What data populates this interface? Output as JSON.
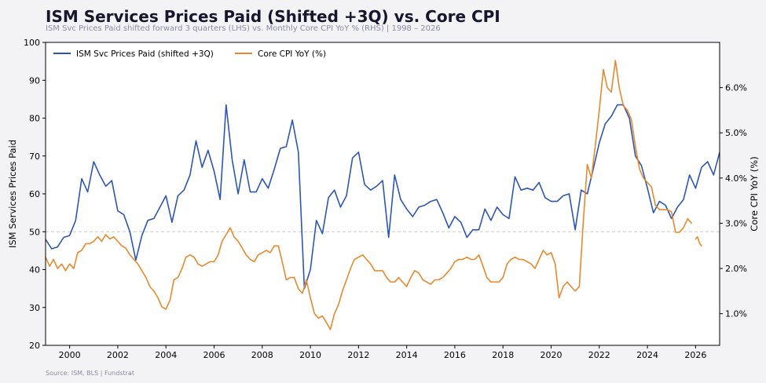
{
  "header": {
    "title": "ISM Services Prices Paid (Shifted +3Q) vs. Core CPI",
    "subtitle": "ISM Svc Prices Paid shifted forward 3 quarters (LHS) vs. Monthly Core CPI YoY % (RHS)  |  1998 – 2026"
  },
  "footer": {
    "source": "Source: ISM, BLS | Fundstrat"
  },
  "colors": {
    "ism": "#2d56b3",
    "cpi": "#e8892e",
    "refline": "#c8c8c8"
  },
  "chart_data": {
    "type": "line",
    "xlim": [
      1999.0,
      2027.0
    ],
    "x_ticks": [
      2000,
      2002,
      2004,
      2006,
      2008,
      2010,
      2012,
      2014,
      2016,
      2018,
      2020,
      2022,
      2024,
      2026
    ],
    "x_tick_labels": [
      "2000",
      "2002",
      "2004",
      "2006",
      "2008",
      "2010",
      "2012",
      "2014",
      "2016",
      "2018",
      "2020",
      "2022",
      "2024",
      "2026"
    ],
    "y_left": {
      "label": "ISM Services Prices Paid",
      "ylim": [
        20,
        100
      ],
      "ticks": [
        20,
        30,
        40,
        50,
        60,
        70,
        80,
        90,
        100
      ],
      "tick_labels": [
        "20",
        "30",
        "40",
        "50",
        "60",
        "70",
        "80",
        "90",
        "100"
      ]
    },
    "y_right": {
      "label": "Core CPI YoY (%)",
      "ylim": [
        0.3,
        7.0
      ],
      "ticks": [
        1.0,
        2.0,
        3.0,
        4.0,
        5.0,
        6.0
      ],
      "tick_labels": [
        "1.0%",
        "2.0%",
        "3.0%",
        "4.0%",
        "5.0%",
        "6.0%"
      ]
    },
    "reference_line": {
      "axis": "left",
      "value": 50,
      "style": "dashed"
    },
    "legend": {
      "position": "top-left"
    },
    "grid": false,
    "series": [
      {
        "name": "ISM Svc Prices Paid (shifted +3Q)",
        "axis": "left",
        "color": "#2d56b3",
        "points": [
          [
            1999.0,
            48.0
          ],
          [
            1999.25,
            45.5
          ],
          [
            1999.5,
            46.0
          ],
          [
            1999.75,
            48.5
          ],
          [
            2000.0,
            49.0
          ],
          [
            2000.25,
            53.0
          ],
          [
            2000.5,
            64.0
          ],
          [
            2000.75,
            60.5
          ],
          [
            2001.0,
            68.5
          ],
          [
            2001.25,
            65.0
          ],
          [
            2001.5,
            62.0
          ],
          [
            2001.75,
            63.5
          ],
          [
            2002.0,
            55.5
          ],
          [
            2002.25,
            54.5
          ],
          [
            2002.5,
            50.0
          ],
          [
            2002.75,
            42.5
          ],
          [
            2003.0,
            49.0
          ],
          [
            2003.25,
            53.0
          ],
          [
            2003.5,
            53.5
          ],
          [
            2003.75,
            56.5
          ],
          [
            2004.0,
            59.5
          ],
          [
            2004.25,
            52.5
          ],
          [
            2004.5,
            59.5
          ],
          [
            2004.75,
            61.0
          ],
          [
            2005.0,
            65.0
          ],
          [
            2005.25,
            74.0
          ],
          [
            2005.5,
            67.0
          ],
          [
            2005.75,
            71.5
          ],
          [
            2006.0,
            66.0
          ],
          [
            2006.25,
            58.5
          ],
          [
            2006.5,
            83.5
          ],
          [
            2006.75,
            69.0
          ],
          [
            2007.0,
            60.0
          ],
          [
            2007.25,
            69.0
          ],
          [
            2007.5,
            60.5
          ],
          [
            2007.75,
            60.5
          ],
          [
            2008.0,
            64.0
          ],
          [
            2008.25,
            61.5
          ],
          [
            2008.5,
            66.5
          ],
          [
            2008.75,
            72.0
          ],
          [
            2009.0,
            72.5
          ],
          [
            2009.25,
            79.5
          ],
          [
            2009.5,
            71.0
          ],
          [
            2009.75,
            35.0
          ],
          [
            2010.0,
            40.0
          ],
          [
            2010.25,
            53.0
          ],
          [
            2010.5,
            49.5
          ],
          [
            2010.75,
            59.0
          ],
          [
            2011.0,
            61.0
          ],
          [
            2011.25,
            56.5
          ],
          [
            2011.5,
            59.5
          ],
          [
            2011.75,
            69.5
          ],
          [
            2012.0,
            71.0
          ],
          [
            2012.25,
            62.5
          ],
          [
            2012.5,
            61.0
          ],
          [
            2012.75,
            62.0
          ],
          [
            2013.0,
            63.5
          ],
          [
            2013.25,
            48.5
          ],
          [
            2013.5,
            65.0
          ],
          [
            2013.75,
            58.5
          ],
          [
            2014.0,
            56.0
          ],
          [
            2014.25,
            54.0
          ],
          [
            2014.5,
            56.5
          ],
          [
            2014.75,
            57.0
          ],
          [
            2015.0,
            58.0
          ],
          [
            2015.25,
            58.5
          ],
          [
            2015.5,
            55.0
          ],
          [
            2015.75,
            51.0
          ],
          [
            2016.0,
            54.0
          ],
          [
            2016.25,
            52.5
          ],
          [
            2016.5,
            48.5
          ],
          [
            2016.75,
            50.5
          ],
          [
            2017.0,
            50.5
          ],
          [
            2017.25,
            56.0
          ],
          [
            2017.5,
            53.0
          ],
          [
            2017.75,
            56.5
          ],
          [
            2018.0,
            54.5
          ],
          [
            2018.25,
            53.5
          ],
          [
            2018.5,
            64.5
          ],
          [
            2018.75,
            61.0
          ],
          [
            2019.0,
            61.5
          ],
          [
            2019.25,
            61.0
          ],
          [
            2019.5,
            63.0
          ],
          [
            2019.75,
            59.0
          ],
          [
            2020.0,
            58.0
          ],
          [
            2020.25,
            58.0
          ],
          [
            2020.5,
            59.5
          ],
          [
            2020.75,
            60.0
          ],
          [
            2021.0,
            50.5
          ],
          [
            2021.25,
            61.0
          ],
          [
            2021.5,
            60.0
          ],
          [
            2021.75,
            66.5
          ],
          [
            2022.0,
            73.5
          ],
          [
            2022.25,
            78.5
          ],
          [
            2022.5,
            80.5
          ],
          [
            2022.75,
            83.5
          ],
          [
            2023.0,
            83.5
          ],
          [
            2023.25,
            80.0
          ],
          [
            2023.5,
            70.0
          ],
          [
            2023.75,
            67.5
          ],
          [
            2024.0,
            61.5
          ],
          [
            2024.25,
            55.0
          ],
          [
            2024.5,
            58.0
          ],
          [
            2024.75,
            57.0
          ],
          [
            2025.0,
            53.5
          ],
          [
            2025.25,
            56.5
          ],
          [
            2025.5,
            58.5
          ],
          [
            2025.75,
            65.0
          ],
          [
            2026.0,
            61.5
          ],
          [
            2026.25,
            67.0
          ],
          [
            2026.5,
            68.5
          ],
          [
            2026.75,
            65.0
          ],
          [
            2027.0,
            71.0
          ]
        ]
      },
      {
        "name": "Core CPI YoY (%)",
        "axis": "right",
        "color": "#e8892e",
        "points": [
          [
            1999.0,
            2.25
          ],
          [
            1999.17,
            2.05
          ],
          [
            1999.33,
            2.2
          ],
          [
            1999.5,
            2.0
          ],
          [
            1999.67,
            2.1
          ],
          [
            1999.83,
            1.95
          ],
          [
            2000.0,
            2.1
          ],
          [
            2000.17,
            2.0
          ],
          [
            2000.33,
            2.35
          ],
          [
            2000.5,
            2.4
          ],
          [
            2000.67,
            2.55
          ],
          [
            2000.83,
            2.55
          ],
          [
            2001.0,
            2.6
          ],
          [
            2001.17,
            2.7
          ],
          [
            2001.33,
            2.6
          ],
          [
            2001.5,
            2.75
          ],
          [
            2001.67,
            2.65
          ],
          [
            2001.83,
            2.7
          ],
          [
            2002.0,
            2.6
          ],
          [
            2002.17,
            2.5
          ],
          [
            2002.33,
            2.45
          ],
          [
            2002.5,
            2.3
          ],
          [
            2002.67,
            2.2
          ],
          [
            2002.83,
            2.1
          ],
          [
            2003.0,
            1.95
          ],
          [
            2003.17,
            1.8
          ],
          [
            2003.33,
            1.6
          ],
          [
            2003.5,
            1.5
          ],
          [
            2003.67,
            1.35
          ],
          [
            2003.83,
            1.15
          ],
          [
            2004.0,
            1.1
          ],
          [
            2004.17,
            1.3
          ],
          [
            2004.33,
            1.75
          ],
          [
            2004.5,
            1.8
          ],
          [
            2004.67,
            2.0
          ],
          [
            2004.83,
            2.25
          ],
          [
            2005.0,
            2.3
          ],
          [
            2005.17,
            2.25
          ],
          [
            2005.33,
            2.1
          ],
          [
            2005.5,
            2.05
          ],
          [
            2005.67,
            2.1
          ],
          [
            2005.83,
            2.15
          ],
          [
            2006.0,
            2.15
          ],
          [
            2006.17,
            2.3
          ],
          [
            2006.33,
            2.6
          ],
          [
            2006.5,
            2.75
          ],
          [
            2006.67,
            2.9
          ],
          [
            2006.83,
            2.7
          ],
          [
            2007.0,
            2.6
          ],
          [
            2007.17,
            2.45
          ],
          [
            2007.33,
            2.3
          ],
          [
            2007.5,
            2.2
          ],
          [
            2007.67,
            2.15
          ],
          [
            2007.83,
            2.3
          ],
          [
            2008.0,
            2.35
          ],
          [
            2008.17,
            2.4
          ],
          [
            2008.33,
            2.35
          ],
          [
            2008.5,
            2.5
          ],
          [
            2008.67,
            2.5
          ],
          [
            2008.83,
            2.15
          ],
          [
            2009.0,
            1.75
          ],
          [
            2009.17,
            1.8
          ],
          [
            2009.33,
            1.8
          ],
          [
            2009.5,
            1.55
          ],
          [
            2009.67,
            1.45
          ],
          [
            2009.83,
            1.75
          ],
          [
            2010.0,
            1.35
          ],
          [
            2010.17,
            1.0
          ],
          [
            2010.33,
            0.9
          ],
          [
            2010.5,
            0.95
          ],
          [
            2010.67,
            0.8
          ],
          [
            2010.83,
            0.65
          ],
          [
            2011.0,
            1.0
          ],
          [
            2011.17,
            1.2
          ],
          [
            2011.33,
            1.5
          ],
          [
            2011.5,
            1.75
          ],
          [
            2011.67,
            2.0
          ],
          [
            2011.83,
            2.2
          ],
          [
            2012.0,
            2.25
          ],
          [
            2012.17,
            2.3
          ],
          [
            2012.33,
            2.2
          ],
          [
            2012.5,
            2.1
          ],
          [
            2012.67,
            1.95
          ],
          [
            2012.83,
            1.95
          ],
          [
            2013.0,
            1.95
          ],
          [
            2013.17,
            1.8
          ],
          [
            2013.33,
            1.7
          ],
          [
            2013.5,
            1.7
          ],
          [
            2013.67,
            1.8
          ],
          [
            2013.83,
            1.7
          ],
          [
            2014.0,
            1.6
          ],
          [
            2014.17,
            1.8
          ],
          [
            2014.33,
            1.95
          ],
          [
            2014.5,
            1.9
          ],
          [
            2014.67,
            1.75
          ],
          [
            2014.83,
            1.7
          ],
          [
            2015.0,
            1.65
          ],
          [
            2015.17,
            1.75
          ],
          [
            2015.33,
            1.75
          ],
          [
            2015.5,
            1.8
          ],
          [
            2015.67,
            1.9
          ],
          [
            2015.83,
            2.0
          ],
          [
            2016.0,
            2.15
          ],
          [
            2016.17,
            2.2
          ],
          [
            2016.33,
            2.2
          ],
          [
            2016.5,
            2.25
          ],
          [
            2016.67,
            2.2
          ],
          [
            2016.83,
            2.2
          ],
          [
            2017.0,
            2.3
          ],
          [
            2017.17,
            2.05
          ],
          [
            2017.33,
            1.8
          ],
          [
            2017.5,
            1.7
          ],
          [
            2017.67,
            1.7
          ],
          [
            2017.83,
            1.7
          ],
          [
            2018.0,
            1.8
          ],
          [
            2018.17,
            2.1
          ],
          [
            2018.33,
            2.2
          ],
          [
            2018.5,
            2.25
          ],
          [
            2018.67,
            2.2
          ],
          [
            2018.83,
            2.2
          ],
          [
            2019.0,
            2.15
          ],
          [
            2019.17,
            2.1
          ],
          [
            2019.33,
            2.0
          ],
          [
            2019.5,
            2.2
          ],
          [
            2019.67,
            2.4
          ],
          [
            2019.83,
            2.3
          ],
          [
            2020.0,
            2.35
          ],
          [
            2020.17,
            2.1
          ],
          [
            2020.33,
            1.35
          ],
          [
            2020.5,
            1.6
          ],
          [
            2020.67,
            1.7
          ],
          [
            2020.83,
            1.6
          ],
          [
            2021.0,
            1.5
          ],
          [
            2021.17,
            1.6
          ],
          [
            2021.33,
            3.0
          ],
          [
            2021.5,
            4.3
          ],
          [
            2021.67,
            4.0
          ],
          [
            2021.83,
            4.7
          ],
          [
            2022.0,
            5.5
          ],
          [
            2022.17,
            6.4
          ],
          [
            2022.33,
            6.0
          ],
          [
            2022.5,
            5.9
          ],
          [
            2022.67,
            6.6
          ],
          [
            2022.83,
            6.0
          ],
          [
            2023.0,
            5.6
          ],
          [
            2023.17,
            5.5
          ],
          [
            2023.33,
            5.3
          ],
          [
            2023.5,
            4.7
          ],
          [
            2023.67,
            4.2
          ],
          [
            2023.83,
            4.0
          ],
          [
            2024.0,
            3.9
          ],
          [
            2024.17,
            3.8
          ],
          [
            2024.33,
            3.4
          ],
          [
            2024.5,
            3.3
          ],
          [
            2024.67,
            3.3
          ],
          [
            2024.83,
            3.3
          ],
          [
            2025.0,
            3.25
          ],
          [
            2025.17,
            2.8
          ],
          [
            2025.33,
            2.8
          ],
          [
            2025.5,
            2.9
          ],
          [
            2025.67,
            3.1
          ],
          [
            2025.83,
            3.0
          ],
          [
            2025.92,
            null
          ],
          [
            2026.0,
            2.65
          ],
          [
            2026.08,
            2.7
          ],
          [
            2026.17,
            2.55
          ],
          [
            2026.25,
            2.5
          ]
        ]
      }
    ]
  }
}
